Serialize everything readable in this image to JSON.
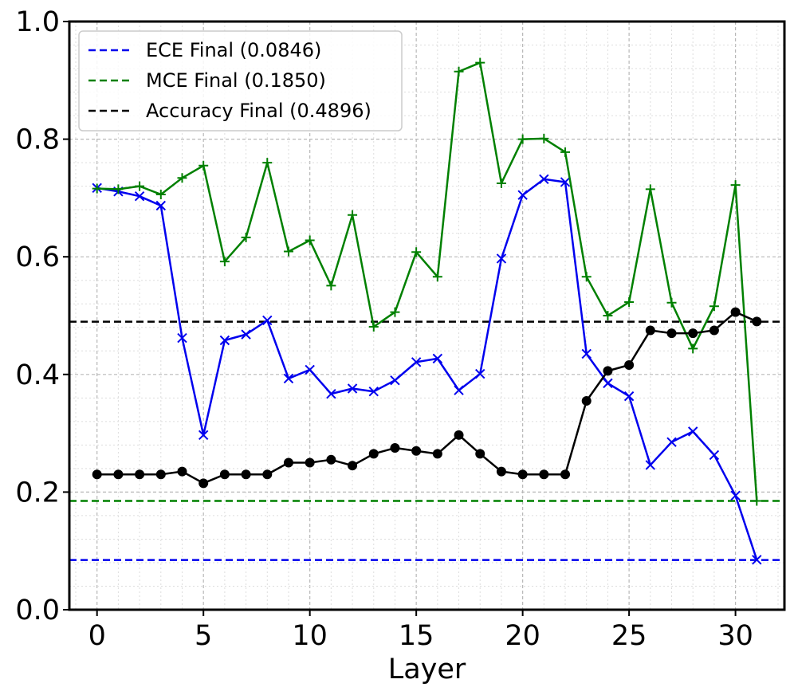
{
  "chart_data": {
    "type": "line",
    "xlabel": "Layer",
    "ylabel": "",
    "xlim": [
      -1.3,
      32.3
    ],
    "ylim": [
      0.0,
      1.0
    ],
    "xticks": [
      0,
      5,
      10,
      15,
      20,
      25,
      30
    ],
    "yticks": [
      0.0,
      0.2,
      0.4,
      0.6,
      0.8,
      1.0
    ],
    "xtick_labels": [
      "0",
      "5",
      "10",
      "15",
      "20",
      "25",
      "30"
    ],
    "ytick_labels": [
      "0.0",
      "0.2",
      "0.4",
      "0.6",
      "0.8",
      "1.0"
    ],
    "grid": true,
    "legend_position": "top-left",
    "x": [
      0,
      1,
      2,
      3,
      4,
      5,
      6,
      7,
      8,
      9,
      10,
      11,
      12,
      13,
      14,
      15,
      16,
      17,
      18,
      19,
      20,
      21,
      22,
      23,
      24,
      25,
      26,
      27,
      28,
      29,
      30,
      31
    ],
    "series": [
      {
        "key": "ece",
        "color": "#0000ee",
        "marker": "x",
        "values": [
          0.717,
          0.711,
          0.703,
          0.687,
          0.462,
          0.297,
          0.458,
          0.468,
          0.492,
          0.393,
          0.408,
          0.367,
          0.376,
          0.371,
          0.39,
          0.421,
          0.427,
          0.373,
          0.401,
          0.597,
          0.705,
          0.732,
          0.727,
          0.435,
          0.385,
          0.363,
          0.246,
          0.285,
          0.303,
          0.263,
          0.194,
          0.085
        ]
      },
      {
        "key": "mce",
        "color": "#008000",
        "marker": "+",
        "values": [
          0.716,
          0.715,
          0.72,
          0.706,
          0.734,
          0.755,
          0.592,
          0.633,
          0.76,
          0.609,
          0.628,
          0.551,
          0.671,
          0.481,
          0.506,
          0.608,
          0.566,
          0.915,
          0.93,
          0.725,
          0.8,
          0.801,
          0.778,
          0.566,
          0.5,
          0.523,
          0.715,
          0.522,
          0.444,
          0.516,
          0.722,
          0.185
        ]
      },
      {
        "key": "accuracy",
        "color": "#000000",
        "marker": "o",
        "values": [
          0.23,
          0.23,
          0.23,
          0.23,
          0.235,
          0.215,
          0.23,
          0.23,
          0.23,
          0.25,
          0.25,
          0.255,
          0.245,
          0.265,
          0.275,
          0.27,
          0.265,
          0.297,
          0.265,
          0.235,
          0.23,
          0.23,
          0.23,
          0.355,
          0.406,
          0.416,
          0.475,
          0.47,
          0.47,
          0.475,
          0.506,
          0.49
        ]
      }
    ],
    "reference_lines": [
      {
        "label": "ECE Final (0.0846)",
        "y": 0.0846,
        "color": "#0000ee"
      },
      {
        "label": "MCE Final (0.1850)",
        "y": 0.185,
        "color": "#008000"
      },
      {
        "label": "Accuracy Final (0.4896)",
        "y": 0.4896,
        "color": "#000000"
      }
    ]
  }
}
